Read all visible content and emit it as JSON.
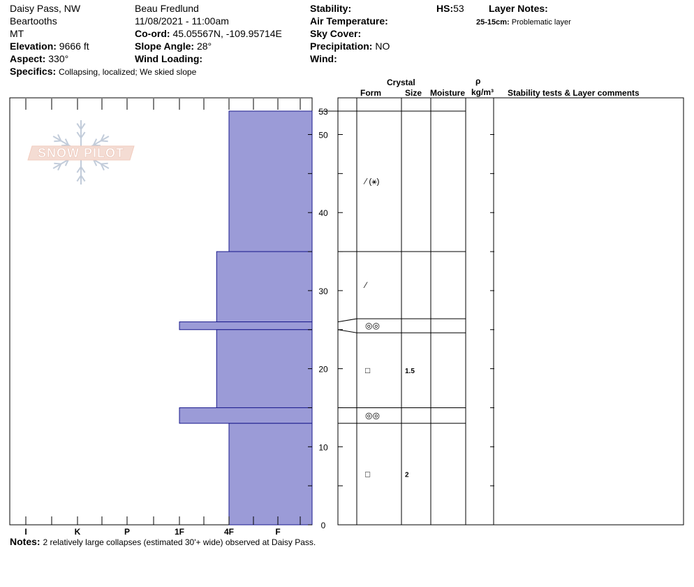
{
  "header": {
    "location": "Daisy Pass, NW",
    "range": "Beartooths",
    "state": "MT",
    "elevation_label": "Elevation:",
    "elevation_value": "9666 ft",
    "aspect_label": "Aspect:",
    "aspect_value": "330°",
    "specifics_label": "Specifics:",
    "specifics_value": "Collapsing, localized;  We skied slope",
    "observer": "Beau  Fredlund",
    "datetime": "11/08/2021 - 11:00am",
    "coord_label": "Co-ord:",
    "coord_value": "45.05567N, -109.95714E",
    "slope_label": "Slope Angle:",
    "slope_value": "28°",
    "wind_loading_label": "Wind Loading:",
    "stability_label": "Stability:",
    "air_temp_label": "Air Temperature:",
    "sky_label": "Sky Cover:",
    "precip_label": "Precipitation:",
    "precip_value": "NO",
    "wind_label": "Wind:",
    "hs_label": "HS:",
    "hs_value": "53",
    "layer_notes_label": "Layer Notes:",
    "layer_note_range": "25-15cm:",
    "layer_note_text": "Problematic layer"
  },
  "logo": {
    "text": "SNOW PILOT"
  },
  "columns": {
    "crystal": "Crystal",
    "form": "Form",
    "size": "Size",
    "moisture": "Moisture",
    "rho": "ρ",
    "density_unit": "kg/m³",
    "comments": "Stability tests & Layer comments"
  },
  "notes": {
    "label": "Notes:",
    "text": "2 relatively large collapses (estimated 30'+ wide) observed at Daisy Pass."
  },
  "chart_data": {
    "type": "bar",
    "orientation": "horizontal",
    "x_categories": [
      "I",
      "K",
      "P",
      "1F",
      "4F",
      "F"
    ],
    "y_ticks": [
      0,
      10,
      20,
      30,
      40,
      50
    ],
    "y_top_label": "53",
    "ylim": [
      0,
      53
    ],
    "hardness_scale": {
      "I": 6,
      "K": 5,
      "P": 4,
      "1F": 3,
      "4F": 2,
      "F": 1
    },
    "colors": {
      "fill": "#9b9bd7",
      "stroke": "#1a1a8c"
    },
    "layers": [
      {
        "top": 53,
        "bottom": 35,
        "hardness": "4F"
      },
      {
        "top": 35,
        "bottom": 26,
        "hardness": "4F-1F"
      },
      {
        "top": 26,
        "bottom": 25,
        "hardness": "1F"
      },
      {
        "top": 25,
        "bottom": 15,
        "hardness": "4F-1F"
      },
      {
        "top": 15,
        "bottom": 13,
        "hardness": "1F"
      },
      {
        "top": 13,
        "bottom": 0,
        "hardness": "4F"
      }
    ],
    "hardness_values": [
      2,
      2.25,
      3,
      2.25,
      3,
      2
    ],
    "table_layers": [
      {
        "top": 53,
        "bottom": 35,
        "form_icon": "precipitation-particles-icon",
        "form_text": "⁄ (⚹)",
        "size": ""
      },
      {
        "top": 35,
        "bottom": 26.4,
        "form_icon": "decomposing-particles-icon",
        "form_text": "⁄",
        "size": ""
      },
      {
        "top": 26.4,
        "bottom": 24.6,
        "form_icon": "depth-hoar-icon",
        "form_text": "◎◎",
        "size": ""
      },
      {
        "top": 24.6,
        "bottom": 15,
        "form_icon": "faceted-crystals-icon",
        "form_text": "□",
        "size": "1.5"
      },
      {
        "top": 15,
        "bottom": 13,
        "form_icon": "depth-hoar-icon",
        "form_text": "◎◎",
        "size": ""
      },
      {
        "top": 13,
        "bottom": 0,
        "form_icon": "faceted-crystals-icon",
        "form_text": "□",
        "size": "2"
      }
    ]
  }
}
